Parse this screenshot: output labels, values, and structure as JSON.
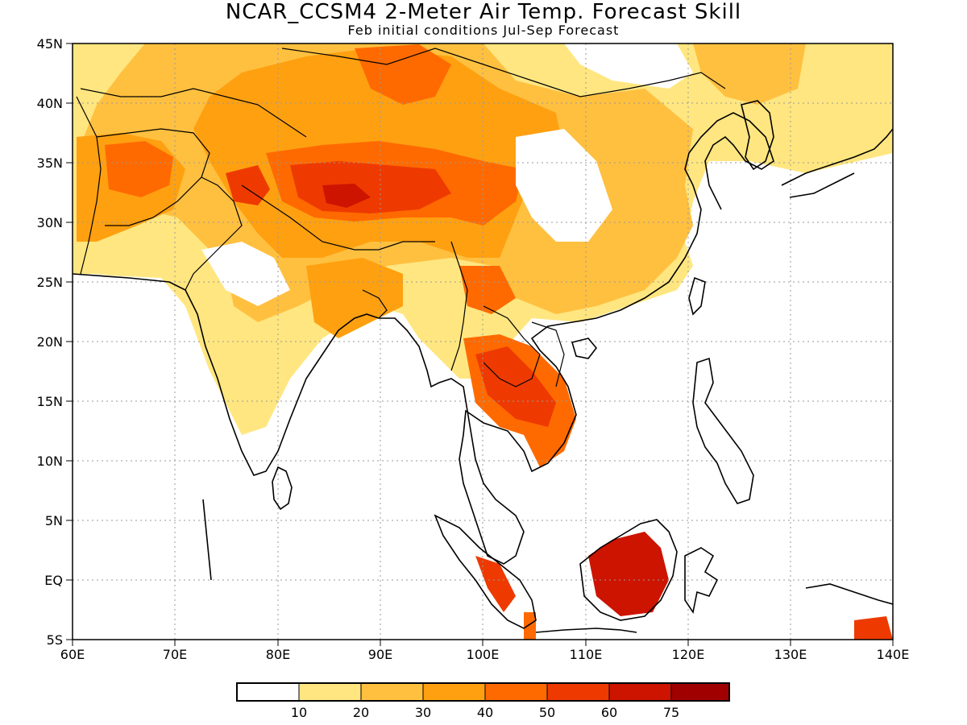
{
  "title": "NCAR_CCSM4 2-Meter Air Temp. Forecast Skill",
  "subtitle": "Feb initial conditions  Jul-Sep Forecast",
  "map": {
    "lon_range": [
      60,
      140
    ],
    "lat_range": [
      -5,
      45
    ],
    "lon_ticks": [
      "60E",
      "70E",
      "80E",
      "90E",
      "100E",
      "110E",
      "120E",
      "130E",
      "140E"
    ],
    "lat_ticks": [
      "5S",
      "EQ",
      "5N",
      "10N",
      "15N",
      "20N",
      "25N",
      "30N",
      "35N",
      "40N",
      "45N"
    ],
    "gridlines": "dotted"
  },
  "colorbar": {
    "colors": [
      "#ffffff",
      "#ffe680",
      "#ffc040",
      "#ffa010",
      "#ff6a00",
      "#ee3a00",
      "#cc1400",
      "#a00000"
    ],
    "labels": [
      "10",
      "20",
      "30",
      "40",
      "50",
      "60",
      "75"
    ]
  }
}
